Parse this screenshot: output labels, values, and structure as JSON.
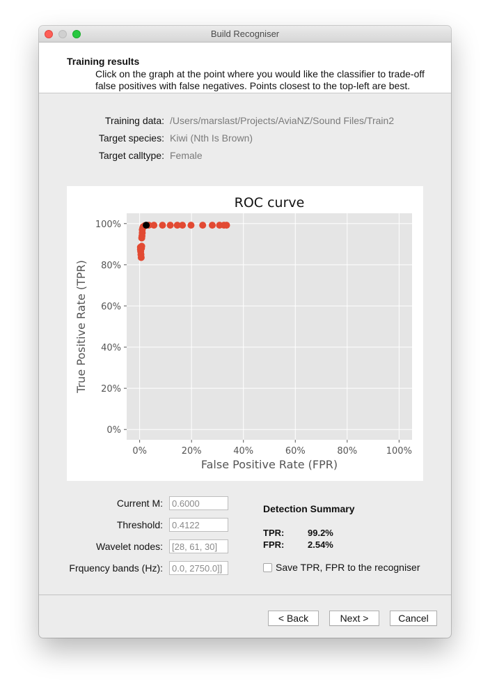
{
  "window": {
    "title": "Build Recogniser"
  },
  "header": {
    "title": "Training results",
    "description": "Click on the graph at the point where you would like the classifier to trade-off false positives with false negatives. Points closest to the top-left are best."
  },
  "info": {
    "training_data_label": "Training data:",
    "training_data_value": "/Users/marslast/Projects/AviaNZ/Sound Files/Train2",
    "target_species_label": "Target species:",
    "target_species_value": "Kiwi (Nth Is Brown)",
    "target_calltype_label": "Target calltype:",
    "target_calltype_value": "Female"
  },
  "chart_data": {
    "type": "scatter",
    "title": "ROC curve",
    "xlabel": "False Positive Rate (FPR)",
    "ylabel": "True Positive Rate (TPR)",
    "xlim": [
      -5,
      105
    ],
    "ylim": [
      -5,
      105
    ],
    "xticks": [
      "0%",
      "20%",
      "40%",
      "60%",
      "80%",
      "100%"
    ],
    "yticks": [
      "0%",
      "20%",
      "40%",
      "60%",
      "80%",
      "100%"
    ],
    "grid": true,
    "series": [
      {
        "color": "#e24a33",
        "points": [
          [
            0.3,
            88.5
          ],
          [
            0.3,
            87.5
          ],
          [
            0.4,
            86.5
          ],
          [
            0.5,
            85.0
          ],
          [
            0.6,
            83.5
          ],
          [
            0.7,
            88.0
          ],
          [
            0.8,
            89.0
          ],
          [
            0.8,
            93.0
          ],
          [
            0.9,
            94.0
          ],
          [
            1.0,
            95.5
          ],
          [
            1.0,
            97.0
          ],
          [
            1.2,
            98.0
          ],
          [
            1.4,
            98.5
          ],
          [
            2.0,
            99.0
          ],
          [
            3.5,
            99.2
          ],
          [
            5.5,
            99.2
          ],
          [
            8.8,
            99.2
          ],
          [
            11.8,
            99.2
          ],
          [
            14.5,
            99.2
          ],
          [
            16.5,
            99.2
          ],
          [
            19.8,
            99.2
          ],
          [
            24.3,
            99.2
          ],
          [
            28.0,
            99.2
          ],
          [
            30.8,
            99.2
          ],
          [
            32.5,
            99.2
          ],
          [
            33.5,
            99.2
          ]
        ]
      },
      {
        "color": "#000000",
        "points": [
          [
            2.54,
            99.2
          ]
        ]
      }
    ]
  },
  "params": {
    "current_m_label": "Current M:",
    "current_m_value": "0.6000",
    "threshold_label": "Threshold:",
    "threshold_value": "0.4122",
    "wavelet_label": "Wavelet nodes:",
    "wavelet_value": "[28, 61, 30]",
    "freq_label": "Frquency bands (Hz):",
    "freq_value": "0.0, 2750.0]]"
  },
  "summary": {
    "title": "Detection Summary",
    "tpr_label": "TPR:",
    "tpr_value": "99.2%",
    "fpr_label": "FPR:",
    "fpr_value": "2.54%",
    "save_label": "Save TPR, FPR to the recogniser"
  },
  "buttons": {
    "back": "< Back",
    "next": "Next >",
    "cancel": "Cancel"
  }
}
